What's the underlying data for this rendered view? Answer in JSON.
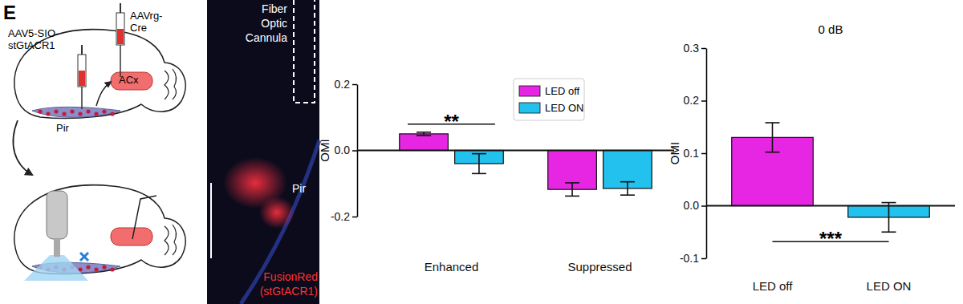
{
  "panel": {
    "label": "E",
    "schematic": {
      "injection_left": [
        "AAV5-SIO-",
        "stGtACR1"
      ],
      "injection_right": [
        "AAVrg-",
        "Cre"
      ],
      "regions": [
        "ACx",
        "Pir"
      ]
    },
    "image": {
      "cannula": [
        "Fiber",
        "Optic",
        "Cannula"
      ],
      "region": "Pir",
      "stain": [
        "FusionRed",
        "(stGtACR1)"
      ]
    }
  },
  "chart_data": [
    {
      "type": "bar",
      "y_label": "OMI",
      "categories": [
        "Enhanced",
        "Suppressed"
      ],
      "series": [
        {
          "name": "LED off",
          "color": "#e626e3",
          "values": [
            0.05,
            -0.118
          ],
          "errors": [
            0.005,
            0.02
          ]
        },
        {
          "name": "LED ON",
          "color": "#22c1ee",
          "values": [
            -0.04,
            -0.115
          ],
          "errors": [
            0.03,
            0.02
          ]
        }
      ],
      "ylim": [
        -0.2,
        0.2
      ],
      "yticks": [
        -0.2,
        {
          "value": 0,
          "label": "0.0"
        },
        0.2
      ],
      "legend": "upper right",
      "annotations": [
        "**"
      ]
    },
    {
      "type": "bar",
      "title": "0 dB",
      "y_label": "OMI",
      "categories": [
        "LED off",
        "LED ON"
      ],
      "values": [
        0.13,
        -0.022
      ],
      "errors": [
        0.028,
        0.028
      ],
      "colors": [
        "#e626e3",
        "#22c1ee"
      ],
      "ylim": [
        -0.1,
        0.3
      ],
      "yticks": [
        -0.1,
        {
          "value": 0,
          "label": "0.0"
        },
        0.1,
        0.2,
        0.3
      ],
      "annotations": [
        "***"
      ]
    }
  ]
}
